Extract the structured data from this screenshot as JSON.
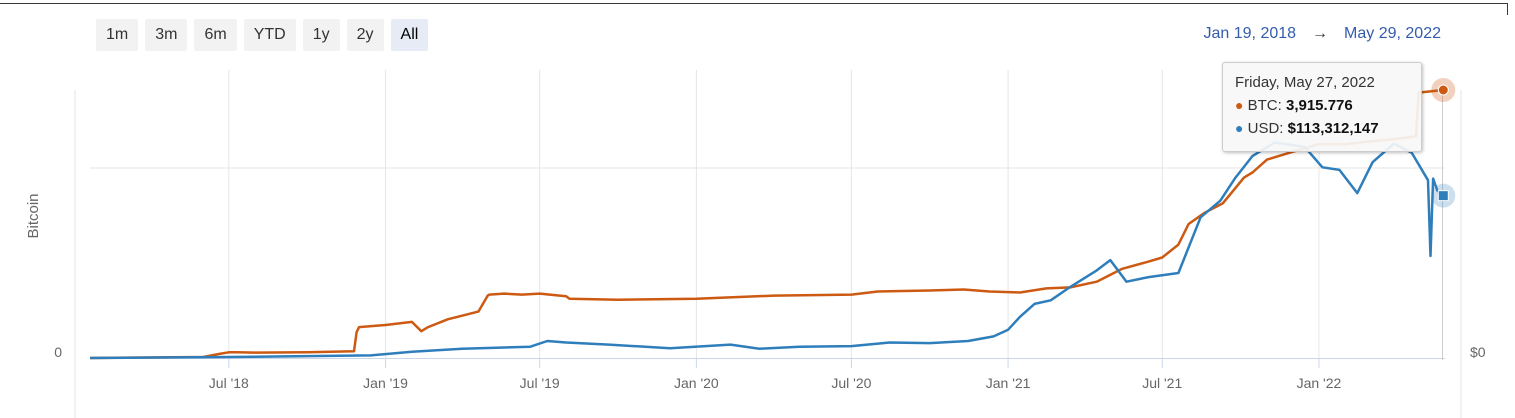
{
  "range_selector": {
    "buttons": [
      "1m",
      "3m",
      "6m",
      "YTD",
      "1y",
      "2y",
      "All"
    ],
    "active": "All"
  },
  "date_range": {
    "from": "Jan 19, 2018",
    "arrow": "→",
    "to": "May 29, 2022"
  },
  "tooltip": {
    "date": "Friday, May 27, 2022",
    "btc_label": "BTC: ",
    "btc_value": "3,915.776",
    "usd_label": "USD: ",
    "usd_value": "$113,312,147"
  },
  "colors": {
    "btc": "#cc5a12",
    "usd": "#2f7ebc",
    "accent": "#335cad"
  },
  "chart_data": {
    "type": "line",
    "ylabel": "Bitcoin",
    "y_left_ticks": [
      "0"
    ],
    "y_right_ticks": [
      "$0"
    ],
    "x_ticks": [
      "Jul '18",
      "Jan '19",
      "Jul '19",
      "Jan '20",
      "Jul '20",
      "Jan '21",
      "Jul '21",
      "Jan '22"
    ],
    "x_tick_dates": [
      "2018-07-01",
      "2019-01-01",
      "2019-07-01",
      "2020-01-01",
      "2020-07-01",
      "2021-01-01",
      "2021-07-01",
      "2022-01-01"
    ],
    "xlim": [
      "2018-01-19",
      "2022-05-29"
    ],
    "ylim_btc": [
      0,
      5200
    ],
    "series": [
      {
        "name": "BTC",
        "axis": "left",
        "color": "#cc5a12",
        "x": [
          "2018-01-19",
          "2018-06-01",
          "2018-06-20",
          "2018-07-01",
          "2018-07-10",
          "2018-08-01",
          "2018-10-01",
          "2018-11-25",
          "2018-11-28",
          "2018-12-01",
          "2019-01-01",
          "2019-02-01",
          "2019-02-12",
          "2019-02-20",
          "2019-03-15",
          "2019-04-20",
          "2019-05-01",
          "2019-05-03",
          "2019-05-20",
          "2019-06-10",
          "2019-07-01",
          "2019-08-01",
          "2019-08-05",
          "2019-10-01",
          "2020-01-01",
          "2020-04-01",
          "2020-07-01",
          "2020-08-01",
          "2020-10-01",
          "2020-11-10",
          "2020-12-10",
          "2021-01-15",
          "2021-02-15",
          "2021-03-15",
          "2021-04-15",
          "2021-05-15",
          "2021-06-15",
          "2021-07-01",
          "2021-07-20",
          "2021-08-01",
          "2021-08-20",
          "2021-09-10",
          "2021-09-25",
          "2021-10-05",
          "2021-10-15",
          "2021-11-01",
          "2021-12-01",
          "2022-01-01",
          "2022-02-01",
          "2022-03-01",
          "2022-04-01",
          "2022-04-25",
          "2022-04-28",
          "2022-05-27"
        ],
        "y": [
          0,
          20,
          80,
          110,
          110,
          105,
          110,
          130,
          500,
          600,
          640,
          700,
          520,
          600,
          750,
          900,
          1210,
          1230,
          1250,
          1230,
          1250,
          1200,
          1150,
          1130,
          1150,
          1210,
          1230,
          1290,
          1310,
          1330,
          1290,
          1270,
          1350,
          1370,
          1480,
          1730,
          1870,
          1950,
          2200,
          2600,
          2820,
          3000,
          3300,
          3500,
          3600,
          3850,
          4000,
          4150,
          4150,
          4200,
          4250,
          4300,
          5150,
          5200
        ]
      },
      {
        "name": "USD",
        "axis": "right",
        "color": "#2f7ebc",
        "x": [
          "2018-01-19",
          "2018-07-01",
          "2018-12-15",
          "2019-02-01",
          "2019-04-01",
          "2019-06-20",
          "2019-07-10",
          "2019-08-01",
          "2019-09-20",
          "2019-12-01",
          "2020-02-10",
          "2020-03-15",
          "2020-05-01",
          "2020-07-01",
          "2020-08-15",
          "2020-10-01",
          "2020-11-15",
          "2020-12-15",
          "2021-01-01",
          "2021-01-15",
          "2021-02-01",
          "2021-02-20",
          "2021-03-15",
          "2021-04-15",
          "2021-05-01",
          "2021-05-20",
          "2021-06-15",
          "2021-07-20",
          "2021-08-15",
          "2021-09-07",
          "2021-09-25",
          "2021-10-15",
          "2021-11-10",
          "2021-12-15",
          "2022-01-05",
          "2022-01-25",
          "2022-02-15",
          "2022-03-05",
          "2022-03-30",
          "2022-04-20",
          "2022-05-09",
          "2022-05-12",
          "2022-05-15",
          "2022-05-20",
          "2022-05-27"
        ],
        "y": [
          0,
          20,
          50,
          120,
          180,
          220,
          330,
          300,
          260,
          190,
          260,
          180,
          220,
          230,
          300,
          290,
          330,
          420,
          550,
          800,
          1050,
          1120,
          1380,
          1700,
          1900,
          1480,
          1570,
          1650,
          2730,
          3050,
          3500,
          3920,
          4180,
          4100,
          3700,
          3650,
          3200,
          3800,
          4160,
          3980,
          3450,
          1980,
          3480,
          3250,
          3150
        ]
      }
    ]
  }
}
